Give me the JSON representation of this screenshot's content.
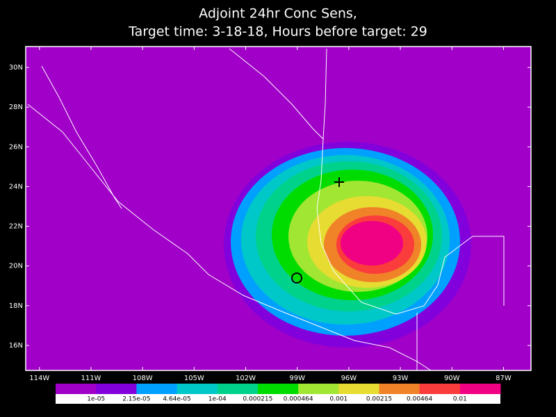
{
  "map": {
    "type": "contour",
    "title": "Adjoint 24hr Conc Sens,",
    "subtitle": "Target time: 3-18-18, Hours before target: 29",
    "xlim": [
      -114.8,
      -85.4
    ],
    "ylim": [
      14.74,
      31.05
    ],
    "xticks": [
      {
        "value": -114,
        "label": "114W"
      },
      {
        "value": -111,
        "label": "111W"
      },
      {
        "value": -108,
        "label": "108W"
      },
      {
        "value": -105,
        "label": "105W"
      },
      {
        "value": -102,
        "label": "102W"
      },
      {
        "value": -99,
        "label": "99W"
      },
      {
        "value": -96,
        "label": "96W"
      },
      {
        "value": -93,
        "label": "93W"
      },
      {
        "value": -90,
        "label": "90W"
      },
      {
        "value": -87,
        "label": "87W"
      }
    ],
    "yticks": [
      {
        "value": 16,
        "label": "16N"
      },
      {
        "value": 18,
        "label": "18N"
      },
      {
        "value": 20,
        "label": "20N"
      },
      {
        "value": 22,
        "label": "22N"
      },
      {
        "value": 24,
        "label": "24N"
      },
      {
        "value": 26,
        "label": "26N"
      },
      {
        "value": 28,
        "label": "28N"
      },
      {
        "value": 30,
        "label": "30N"
      }
    ],
    "colors": [
      "#a000c8",
      "#8200dc",
      "#00a0ff",
      "#00c8c8",
      "#00d28c",
      "#00dc00",
      "#a0e632",
      "#e6dc32",
      "#f08228",
      "#fa3c3c",
      "#f00082"
    ],
    "levels": [
      {
        "value": 1e-05,
        "label": "1e-05"
      },
      {
        "value": 2.15e-05,
        "label": "2.15e-05"
      },
      {
        "value": 4.64e-05,
        "label": "4.64e-05"
      },
      {
        "value": 0.0001,
        "label": "1e-04"
      },
      0.000215,
      0.000464,
      0.001,
      0.00215,
      0.00464,
      0.01
    ]
  }
}
